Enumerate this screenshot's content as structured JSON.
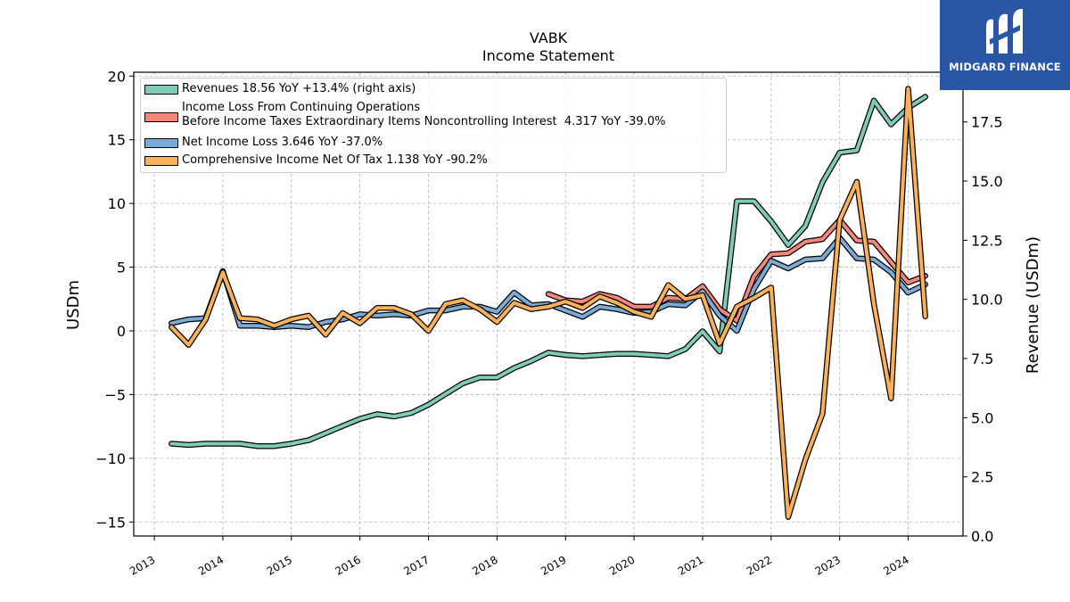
{
  "title": "VABK",
  "subtitle": "Income Statement",
  "brand": {
    "name": "MIDGARD FINANCE",
    "color": "#2a56a8"
  },
  "chart_data": {
    "type": "line",
    "x_tick_labels": [
      "2013",
      "2014",
      "2015",
      "2016",
      "2017",
      "2018",
      "2019",
      "2020",
      "2021",
      "2022",
      "2023",
      "2024"
    ],
    "ylabel_left": "USDm",
    "ylabel_right": "Revenue (USDm)",
    "ylim_left": [
      -16.1,
      20.3
    ],
    "ylim_right": [
      0,
      19.6
    ],
    "yticks_left": [
      20,
      15,
      10,
      5,
      0,
      -5,
      -10,
      -15
    ],
    "yticks_left_labels": [
      "20",
      "15",
      "10",
      "5",
      "0",
      "−5",
      "−10",
      "−15"
    ],
    "yticks_right": [
      17.5,
      15.0,
      12.5,
      10.0,
      7.5,
      5.0,
      2.5,
      0.0
    ],
    "yticks_right_labels": [
      "17.5",
      "15.0",
      "12.5",
      "10.0",
      "7.5",
      "5.0",
      "2.5",
      "0.0"
    ],
    "grid": true,
    "legend_position": "top-left",
    "series": [
      {
        "name": "Revenues  18.56 YoY +13.4% (right axis)",
        "axis": "right",
        "color": "#80cbb8",
        "x": [
          2013.25,
          2013.5,
          2013.75,
          2014.0,
          2014.25,
          2014.5,
          2014.75,
          2015.0,
          2015.25,
          2015.5,
          2015.75,
          2016.0,
          2016.25,
          2016.5,
          2016.75,
          2017.0,
          2017.25,
          2017.5,
          2017.75,
          2018.0,
          2018.25,
          2018.5,
          2018.75,
          2019.0,
          2019.25,
          2019.5,
          2019.75,
          2020.0,
          2020.25,
          2020.5,
          2020.75,
          2021.0,
          2021.25,
          2021.5,
          2021.75,
          2022.0,
          2022.25,
          2022.5,
          2022.75,
          2023.0,
          2023.25,
          2023.5,
          2023.75,
          2024.0,
          2024.25
        ],
        "values": [
          3.9,
          3.85,
          3.9,
          3.9,
          3.9,
          3.8,
          3.8,
          3.9,
          4.05,
          4.35,
          4.65,
          4.95,
          5.15,
          5.05,
          5.2,
          5.55,
          6.0,
          6.45,
          6.7,
          6.7,
          7.1,
          7.4,
          7.75,
          7.65,
          7.6,
          7.65,
          7.7,
          7.7,
          7.65,
          7.6,
          7.9,
          8.65,
          7.8,
          14.15,
          14.15,
          13.3,
          12.3,
          13.1,
          14.95,
          16.2,
          16.3,
          18.4,
          17.4,
          18.1,
          18.56
        ]
      },
      {
        "name": "Income Loss From Continuing Operations\nBefore Income Taxes Extraordinary Items Noncontrolling Interest  4.317 YoY -39.0%",
        "axis": "left",
        "color": "#f4877a",
        "x": [
          2018.75,
          2019.0,
          2019.25,
          2019.5,
          2019.75,
          2020.0,
          2020.25,
          2020.5,
          2020.75,
          2021.0,
          2021.25,
          2021.5,
          2021.75,
          2022.0,
          2022.25,
          2022.5,
          2022.75,
          2023.0,
          2023.25,
          2023.5,
          2023.75,
          2024.0,
          2024.25
        ],
        "values": [
          2.9,
          2.4,
          2.3,
          2.9,
          2.6,
          1.9,
          1.9,
          2.6,
          2.5,
          3.5,
          1.7,
          0.8,
          4.3,
          6.0,
          6.1,
          7.0,
          7.2,
          8.7,
          7.1,
          7.0,
          5.4,
          3.8,
          4.317
        ]
      },
      {
        "name": "Net Income Loss  3.646 YoY -37.0%",
        "axis": "left",
        "color": "#7aaad6",
        "x": [
          2013.25,
          2013.5,
          2013.75,
          2014.0,
          2014.25,
          2014.5,
          2014.75,
          2015.0,
          2015.25,
          2015.5,
          2015.75,
          2016.0,
          2016.25,
          2016.5,
          2016.75,
          2017.0,
          2017.25,
          2017.5,
          2017.75,
          2018.0,
          2018.25,
          2018.5,
          2018.75,
          2019.0,
          2019.25,
          2019.5,
          2019.75,
          2020.0,
          2020.25,
          2020.5,
          2020.75,
          2021.0,
          2021.25,
          2021.5,
          2021.75,
          2022.0,
          2022.25,
          2022.5,
          2022.75,
          2023.0,
          2023.25,
          2023.5,
          2023.75,
          2024.0,
          2024.25
        ],
        "values": [
          0.6,
          0.9,
          1.0,
          4.7,
          0.4,
          0.4,
          0.3,
          0.4,
          0.3,
          0.7,
          0.9,
          1.3,
          1.2,
          1.3,
          1.2,
          1.6,
          1.6,
          1.9,
          1.9,
          1.5,
          3.0,
          2.0,
          2.1,
          1.6,
          1.1,
          1.9,
          1.7,
          1.4,
          1.5,
          2.1,
          2.0,
          3.1,
          1.2,
          0.0,
          3.3,
          5.5,
          4.9,
          5.6,
          5.7,
          7.3,
          5.7,
          5.6,
          4.6,
          3.0,
          3.646
        ]
      },
      {
        "name": "Comprehensive Income Net Of Tax  1.138 YoY -90.2%",
        "axis": "left",
        "color": "#fbb15a",
        "x": [
          2013.25,
          2013.5,
          2013.75,
          2014.0,
          2014.25,
          2014.5,
          2014.75,
          2015.0,
          2015.25,
          2015.5,
          2015.75,
          2016.0,
          2016.25,
          2016.5,
          2016.75,
          2017.0,
          2017.25,
          2017.5,
          2017.75,
          2018.0,
          2018.25,
          2018.5,
          2018.75,
          2019.0,
          2019.25,
          2019.5,
          2019.75,
          2020.0,
          2020.25,
          2020.5,
          2020.75,
          2021.0,
          2021.25,
          2021.5,
          2021.75,
          2022.0,
          2022.25,
          2022.5,
          2022.75,
          2023.0,
          2023.25,
          2023.5,
          2023.75,
          2024.0,
          2024.25
        ],
        "values": [
          0.3,
          -1.1,
          0.9,
          4.6,
          1.0,
          0.9,
          0.4,
          0.9,
          1.2,
          -0.3,
          1.4,
          0.6,
          1.8,
          1.8,
          1.3,
          0.0,
          2.1,
          2.4,
          1.7,
          0.7,
          2.2,
          1.7,
          1.9,
          2.3,
          1.8,
          2.7,
          2.2,
          1.5,
          1.1,
          3.6,
          2.5,
          2.8,
          -1.0,
          1.9,
          2.6,
          3.4,
          -14.6,
          -10.1,
          -6.5,
          8.7,
          11.7,
          2.1,
          -5.3,
          19.0,
          1.138
        ]
      }
    ]
  }
}
